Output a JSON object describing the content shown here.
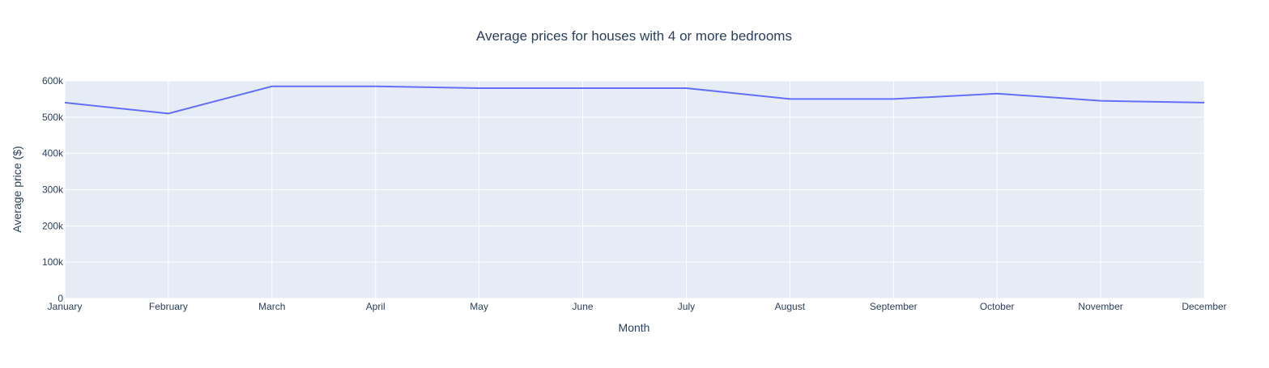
{
  "chart_data": {
    "type": "line",
    "title": "Average prices for houses with 4 or more bedrooms",
    "xlabel": "Month",
    "ylabel": "Average price ($)",
    "categories": [
      "January",
      "February",
      "March",
      "April",
      "May",
      "June",
      "July",
      "August",
      "September",
      "October",
      "November",
      "December"
    ],
    "series": [
      {
        "values": [
          540000,
          510000,
          585000,
          585000,
          580000,
          580000,
          580000,
          550000,
          550000,
          565000,
          545000,
          540000
        ]
      }
    ],
    "ylim": [
      0,
      600000
    ],
    "yticks": [
      0,
      100000,
      200000,
      300000,
      400000,
      500000,
      600000
    ],
    "ytick_labels": [
      "0",
      "100k",
      "200k",
      "300k",
      "400k",
      "500k",
      "600k"
    ],
    "grid": true,
    "colors": {
      "plot_background": "#e5ecf6",
      "grid": "#ffffff",
      "line": "#636efa",
      "text": "#2a3f5f"
    }
  }
}
